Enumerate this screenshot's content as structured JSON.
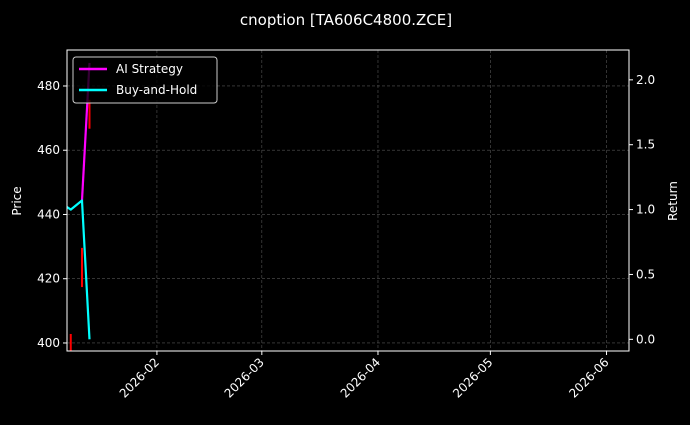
{
  "chart_data": {
    "type": "line",
    "title": "cnoption [TA606C4800.ZCE]",
    "ylabel_left": "Price",
    "ylabel_right": "Return",
    "xlabel": "",
    "x_range": [
      "2026-01-08",
      "2026-06-07"
    ],
    "ylim_left": [
      397.5,
      491.2
    ],
    "ylim_right": [
      -0.09,
      2.23
    ],
    "x_ticks": [
      "2026-02",
      "2026-03",
      "2026-04",
      "2026-05",
      "2026-06"
    ],
    "y_ticks_left": [
      400,
      420,
      440,
      460,
      480
    ],
    "y_ticks_right": [
      "0.0",
      "0.5",
      "1.0",
      "1.5",
      "2.0"
    ],
    "grid": true,
    "legend_position": "top-left",
    "price_bars": [
      {
        "date": "2026-01-09",
        "low": 397.5,
        "high": 402.8,
        "color": "#ff0000"
      },
      {
        "date": "2026-01-12",
        "low": 417.4,
        "high": 429.6,
        "color": "#ff0000"
      },
      {
        "date": "2026-01-14",
        "low": 466.7,
        "high": 475.7,
        "color": "#ff0000"
      }
    ],
    "series": [
      {
        "name": "AI Strategy",
        "color": "#ff00ff",
        "axis": "right",
        "x": [
          "2026-01-12",
          "2026-01-14"
        ],
        "y": [
          1.07,
          2.13
        ]
      },
      {
        "name": "Buy-and-Hold",
        "color": "#00ffff",
        "axis": "right",
        "x": [
          "2026-01-08",
          "2026-01-09",
          "2026-01-12",
          "2026-01-14"
        ],
        "y": [
          1.02,
          1.0,
          1.07,
          0.0
        ]
      }
    ]
  }
}
